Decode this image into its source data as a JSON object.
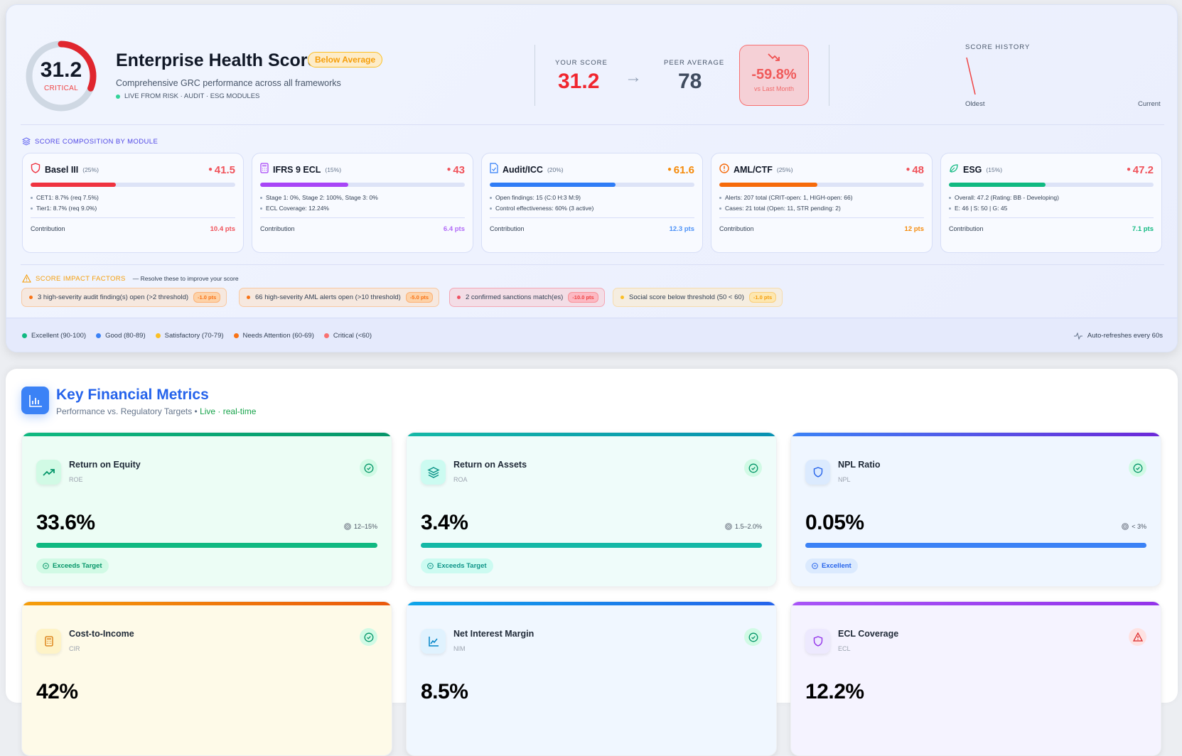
{
  "header": {
    "score": "31.2",
    "score_value": 31.2,
    "score_status": "CRITICAL",
    "title": "Enterprise Health Score",
    "badge": "Below Average",
    "subtitle": "Comprehensive GRC performance across all frameworks",
    "live_text": "LIVE FROM RISK · AUDIT · ESG MODULES",
    "your_score_label": "YOUR SCORE",
    "your_score": "31.2",
    "peer_label": "PEER AVERAGE",
    "peer_value": "78",
    "delta_value": "-59.8%",
    "delta_label": "vs Last Month",
    "history_label": "SCORE HISTORY",
    "history_oldest": "Oldest",
    "history_current": "Current",
    "colors": {
      "critical": "#ef4444",
      "badge": "#f59e0b"
    }
  },
  "composition": {
    "title": "SCORE COMPOSITION BY MODULE",
    "modules": [
      {
        "name": "Basel III",
        "weight": "(25%)",
        "score": "41.5",
        "fill": 41.5,
        "color": "#ef3340",
        "score_color": "#f0525a",
        "icon": "shield-icon",
        "details": [
          "CET1: 8.7% (req 7.5%)",
          "Tier1: 8.7% (req 9.0%)"
        ],
        "contribution_label": "Contribution",
        "contribution": "10.4 pts"
      },
      {
        "name": "IFRS 9 ECL",
        "weight": "(15%)",
        "score": "43",
        "fill": 43,
        "color": "#a845f7",
        "score_color": "#f0525a",
        "icon": "calculator-icon",
        "details": [
          "Stage 1: 0%, Stage 2: 100%, Stage 3: 0%",
          "ECL Coverage: 12.24%"
        ],
        "contribution_label": "Contribution",
        "contribution": "6.4 pts",
        "contribution_color": "#b169f7"
      },
      {
        "name": "Audit/ICC",
        "weight": "(20%)",
        "score": "61.6",
        "fill": 61.6,
        "color": "#2f7cf6",
        "score_color": "#f58b0b",
        "icon": "file-check-icon",
        "details": [
          "Open findings: 15 (C:0 H:3 M:9)",
          "Control effectiveness: 60% (3 active)"
        ],
        "contribution_label": "Contribution",
        "contribution": "12.3 pts",
        "contribution_color": "#4b91f7"
      },
      {
        "name": "AML/CTF",
        "weight": "(25%)",
        "score": "48",
        "fill": 48,
        "color": "#f66a0a",
        "score_color": "#f0525a",
        "icon": "alert-circle-icon",
        "details": [
          "Alerts: 207 total (CRIT-open: 1, HIGH-open: 66)",
          "Cases: 21 total (Open: 11, STR pending: 2)"
        ],
        "contribution_label": "Contribution",
        "contribution": "12 pts",
        "contribution_color": "#f58b0b"
      },
      {
        "name": "ESG",
        "weight": "(15%)",
        "score": "47.2",
        "fill": 47.2,
        "color": "#10b981",
        "score_color": "#f0525a",
        "icon": "leaf-icon",
        "details": [
          "Overall: 47.2 (Rating: BB - Developing)",
          "E: 46 | S: 50 | G: 45"
        ],
        "contribution_label": "Contribution",
        "contribution": "7.1 pts",
        "contribution_color": "#10b981"
      }
    ]
  },
  "impact": {
    "title": "SCORE IMPACT FACTORS",
    "hint": "— Resolve these to improve your score",
    "factors": [
      {
        "text": "3 high-severity audit finding(s) open (>2 threshold)",
        "pts": "-1.0 pts",
        "tone": "orange"
      },
      {
        "text": "66 high-severity AML alerts open (>10 threshold)",
        "pts": "-5.0 pts",
        "tone": "orange"
      },
      {
        "text": "2 confirmed sanctions match(es)",
        "pts": "-10.0 pts",
        "tone": "red"
      },
      {
        "text": "Social score below threshold (50 < 60)",
        "pts": "-1.0 pts",
        "tone": "yellow"
      }
    ]
  },
  "legend": {
    "items": [
      {
        "label": "Excellent (90-100)",
        "color": "#10b981"
      },
      {
        "label": "Good (80-89)",
        "color": "#3b82f6"
      },
      {
        "label": "Satisfactory (70-79)",
        "color": "#fbbf24"
      },
      {
        "label": "Needs Attention (60-69)",
        "color": "#f97316"
      },
      {
        "label": "Critical (<60)",
        "color": "#f87171"
      }
    ],
    "refresh": "Auto-refreshes every 60s"
  },
  "metrics": {
    "title": "Key Financial Metrics",
    "subtitle": "Performance vs. Regulatory Targets •",
    "live": "Live · real-time",
    "cards": [
      {
        "name": "Return on Equity",
        "abbr": "ROE",
        "value": "33.6%",
        "target": "12–15%",
        "fill": 100,
        "tag": "Exceeds Target",
        "status": "ok",
        "icon": "trending-up-icon",
        "bar": "linear-gradient(90deg,#10b981,#059669)",
        "bar_color": "#10b981",
        "bg": "#ecfdf5",
        "icon_bg": "#d1fae5",
        "accent": "#059669",
        "tag_bg": "#d1fae5"
      },
      {
        "name": "Return on Assets",
        "abbr": "ROA",
        "value": "3.4%",
        "target": "1.5–2.0%",
        "fill": 100,
        "tag": "Exceeds Target",
        "status": "ok",
        "icon": "layers-icon",
        "bar": "linear-gradient(90deg,#14b8a6,#0891b2)",
        "bar_color": "#14b8a6",
        "bg": "#effcfa",
        "icon_bg": "#ccfbf1",
        "accent": "#0d9488",
        "tag_bg": "#ccfbf1"
      },
      {
        "name": "NPL Ratio",
        "abbr": "NPL",
        "value": "0.05%",
        "target": "< 3%",
        "fill": 100,
        "tag": "Excellent",
        "status": "ok",
        "icon": "shield-icon",
        "bar": "linear-gradient(90deg,#3b82f6,#6d28d9)",
        "bar_color": "#3b82f6",
        "bg": "#eff6ff",
        "icon_bg": "#dbeafe",
        "accent": "#2563eb",
        "tag_bg": "#dbeafe"
      },
      {
        "name": "Cost-to-Income",
        "abbr": "CIR",
        "value": "42%",
        "status": "ok",
        "icon": "calculator-icon",
        "bar": "linear-gradient(90deg,#f59e0b,#ea580c)",
        "bg": "#fefae8",
        "icon_bg": "#fef3c7",
        "accent": "#d97706"
      },
      {
        "name": "Net Interest Margin",
        "abbr": "NIM",
        "value": "8.5%",
        "status": "ok",
        "icon": "line-chart-icon",
        "bar": "linear-gradient(90deg,#0ea5e9,#2563eb)",
        "bg": "#f0f7ff",
        "icon_bg": "#e0f2fe",
        "accent": "#0284c7"
      },
      {
        "name": "ECL Coverage",
        "abbr": "ECL",
        "value": "12.2%",
        "status": "warn",
        "icon": "shield-icon",
        "bar": "linear-gradient(90deg,#a855f7,#9333ea)",
        "bg": "#f5f3ff",
        "icon_bg": "#ede9fe",
        "accent": "#9333ea"
      }
    ]
  }
}
